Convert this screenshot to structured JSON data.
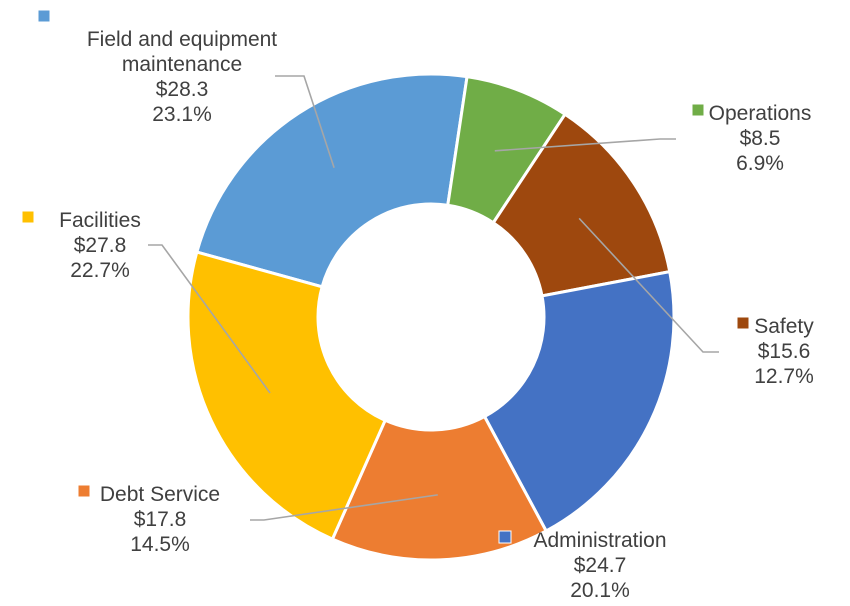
{
  "chart_data": {
    "type": "pie",
    "donut": true,
    "series": [
      {
        "label": "Field and equipment maintenance",
        "label_lines": [
          "Field and equipment",
          "maintenance"
        ],
        "value": 28.3,
        "value_text": "$28.3",
        "percent": 23.1,
        "percent_text": "23.1%",
        "color": "#5b9bd5"
      },
      {
        "label": "Operations",
        "label_lines": [
          "Operations"
        ],
        "value": 8.5,
        "value_text": "$8.5",
        "percent": 6.9,
        "percent_text": "6.9%",
        "color": "#70ad47"
      },
      {
        "label": "Safety",
        "label_lines": [
          "Safety"
        ],
        "value": 15.6,
        "value_text": "$15.6",
        "percent": 12.7,
        "percent_text": "12.7%",
        "color": "#9e480e"
      },
      {
        "label": "Administration",
        "label_lines": [
          "Administration"
        ],
        "value": 24.7,
        "value_text": "$24.7",
        "percent": 20.1,
        "percent_text": "20.1%",
        "color": "#4472c4"
      },
      {
        "label": "Debt Service",
        "label_lines": [
          "Debt Service"
        ],
        "value": 17.8,
        "value_text": "$17.8",
        "percent": 14.5,
        "percent_text": "14.5%",
        "color": "#ed7d31"
      },
      {
        "label": "Facilities",
        "label_lines": [
          "Facilities"
        ],
        "value": 27.8,
        "value_text": "$27.8",
        "percent": 22.7,
        "percent_text": "22.7%",
        "color": "#ffc000"
      }
    ]
  }
}
